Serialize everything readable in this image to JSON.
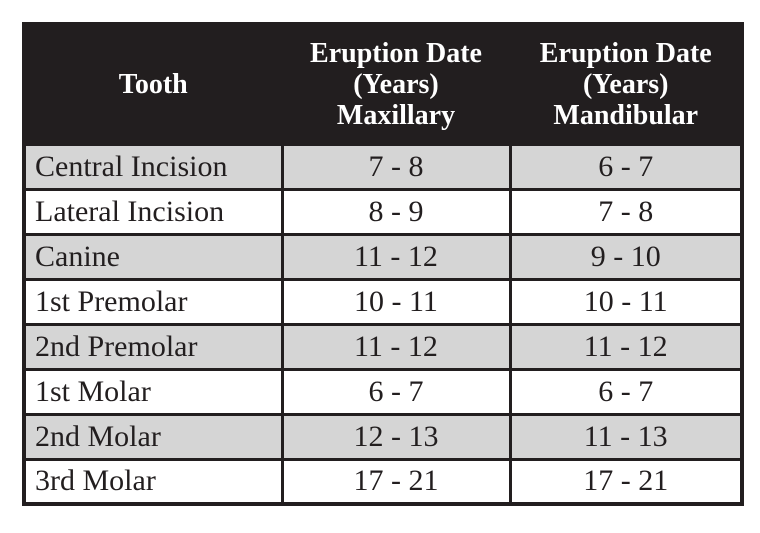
{
  "chart_data": {
    "type": "table",
    "title": "",
    "columns": [
      "Tooth",
      "Eruption Date (Years) Maxillary",
      "Eruption Date (Years) Mandibular"
    ],
    "rows": [
      [
        "Central Incision",
        "7 - 8",
        "6 - 7"
      ],
      [
        "Lateral Incision",
        "8 - 9",
        "7 - 8"
      ],
      [
        "Canine",
        "11 - 12",
        "9 - 10"
      ],
      [
        "1st Premolar",
        "10 - 11",
        "10 - 11"
      ],
      [
        "2nd Premolar",
        "11 - 12",
        "11 - 12"
      ],
      [
        "1st Molar",
        "6 - 7",
        "6 - 7"
      ],
      [
        "2nd Molar",
        "12 - 13",
        "11 - 13"
      ],
      [
        "3rd Molar",
        "17 - 21",
        "17 - 21"
      ]
    ],
    "layout_hints": {
      "header_style": "black background, white bold serif text",
      "row_striping": "odd rows light gray, even rows white",
      "grid": "on"
    }
  },
  "table": {
    "header": {
      "tooth": "Tooth",
      "maxillary_lines": [
        "Eruption Date",
        "(Years)",
        "Maxillary"
      ],
      "mandibular_lines": [
        "Eruption Date",
        "(Years)",
        "Mandibular"
      ]
    },
    "rows": [
      {
        "tooth": "Central Incision",
        "maxillary": "7 - 8",
        "mandibular": "6 - 7"
      },
      {
        "tooth": "Lateral Incision",
        "maxillary": "8 - 9",
        "mandibular": "7 - 8"
      },
      {
        "tooth": "Canine",
        "maxillary": "11 - 12",
        "mandibular": "9 - 10"
      },
      {
        "tooth": "1st Premolar",
        "maxillary": "10 - 11",
        "mandibular": "10 - 11"
      },
      {
        "tooth": "2nd Premolar",
        "maxillary": "11 - 12",
        "mandibular": "11 - 12"
      },
      {
        "tooth": "1st Molar",
        "maxillary": "6 - 7",
        "mandibular": "6 - 7"
      },
      {
        "tooth": "2nd Molar",
        "maxillary": "12 - 13",
        "mandibular": "11 - 13"
      },
      {
        "tooth": "3rd Molar",
        "maxillary": "17 - 21",
        "mandibular": "17 - 21"
      }
    ]
  },
  "colors": {
    "header_bg": "#221e1f",
    "header_text": "#ffffff",
    "row_alt_bg": "#d5d5d5",
    "row_bg": "#ffffff",
    "border": "#221e1f",
    "text": "#221e1f"
  }
}
